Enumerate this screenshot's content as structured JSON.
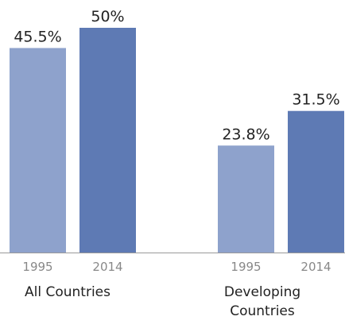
{
  "chart_data": {
    "type": "bar",
    "categories": [
      "All Countries",
      "Developing Countries"
    ],
    "series": [
      {
        "name": "1995",
        "color": "#8ea2cc",
        "values": [
          45.5,
          23.8
        ],
        "value_labels": [
          "45.5%",
          "23.8%"
        ]
      },
      {
        "name": "2014",
        "color": "#5e7ab4",
        "values": [
          50,
          31.5
        ],
        "value_labels": [
          "50%",
          "31.5%"
        ]
      }
    ],
    "ylim": [
      0,
      50
    ]
  }
}
